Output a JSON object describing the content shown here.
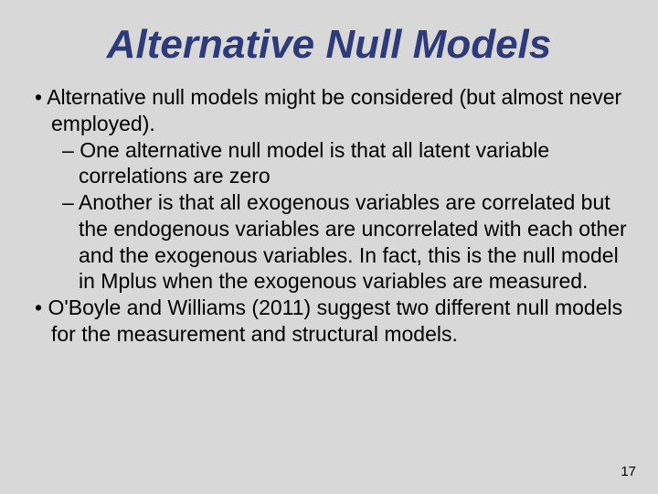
{
  "title": "Alternative Null Models",
  "bullets": {
    "b0": "Alternative null models might be considered (but almost never employed).",
    "b1": "One alternative null model is that all latent variable correlations are zero",
    "b2": "Another is that all exogenous variables are correlated but the endogenous variables are uncorrelated with each other and the exogenous variables.  In fact, this is the null model in Mplus when the exogenous variables are measured.",
    "b3": "O'Boyle and Williams (2011) suggest two different null models for the measurement and structural models."
  },
  "page_number": "17",
  "colors": {
    "background": "#d8d8d8",
    "title_color": "#2e3b7a",
    "body_color": "#000000"
  },
  "typography": {
    "title_fontsize": 44,
    "title_style": "bold italic",
    "body_fontsize": 23,
    "pagenum_fontsize": 15,
    "font_family": "Arial"
  }
}
